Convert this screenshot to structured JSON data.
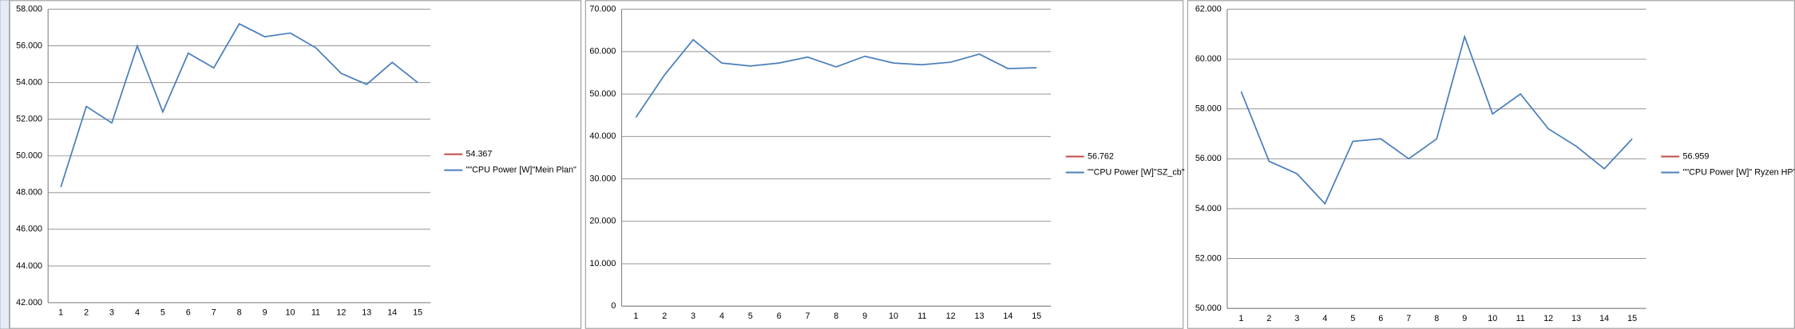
{
  "chart_data": [
    {
      "type": "line",
      "categories": [
        "1",
        "2",
        "3",
        "4",
        "5",
        "6",
        "7",
        "8",
        "9",
        "10",
        "11",
        "12",
        "13",
        "14",
        "15"
      ],
      "series": [
        {
          "name": "54.367",
          "color": "#be4b48",
          "values": [
            null,
            null,
            null,
            null,
            null,
            null,
            null,
            null,
            null,
            null,
            null,
            null,
            null,
            null,
            null
          ]
        },
        {
          "name": "\"\"CPU Power [W]\"Mein Plan\"",
          "color": "#4a7ebb",
          "values": [
            48.3,
            52.7,
            51.8,
            56.0,
            52.4,
            55.6,
            54.8,
            57.2,
            56.5,
            56.7,
            55.9,
            54.5,
            53.9,
            55.1,
            54.0
          ]
        }
      ],
      "ylim": [
        42,
        58
      ],
      "yticks": [
        {
          "value": 42,
          "label": "42.000"
        },
        {
          "value": 44,
          "label": "44.000"
        },
        {
          "value": 46,
          "label": "46.000"
        },
        {
          "value": 48,
          "label": "48.000"
        },
        {
          "value": 50,
          "label": "50.000"
        },
        {
          "value": 52,
          "label": "52.000"
        },
        {
          "value": 54,
          "label": "54.000"
        },
        {
          "value": 56,
          "label": "56.000"
        },
        {
          "value": 58,
          "label": "58.000"
        }
      ],
      "grid": true,
      "legend": "right"
    },
    {
      "type": "line",
      "categories": [
        "1",
        "2",
        "3",
        "4",
        "5",
        "6",
        "7",
        "8",
        "9",
        "10",
        "11",
        "12",
        "13",
        "14",
        "15"
      ],
      "series": [
        {
          "name": "56.762",
          "color": "#be4b48",
          "values": [
            null,
            null,
            null,
            null,
            null,
            null,
            null,
            null,
            null,
            null,
            null,
            null,
            null,
            null,
            null
          ]
        },
        {
          "name": "\"\"CPU Power [W]\"SZ_cb\"",
          "color": "#4a7ebb",
          "values": [
            44.5,
            54.5,
            62.8,
            57.3,
            56.6,
            57.3,
            58.7,
            56.4,
            58.9,
            57.3,
            56.9,
            57.5,
            59.4,
            56.0,
            56.2
          ]
        }
      ],
      "ylim": [
        0,
        70
      ],
      "yticks": [
        0,
        {
          "value": 10,
          "label": "10.000"
        },
        {
          "value": 20,
          "label": "20.000"
        },
        {
          "value": 30,
          "label": "30.000"
        },
        {
          "value": 40,
          "label": "40.000"
        },
        {
          "value": 50,
          "label": "50.000"
        },
        {
          "value": 60,
          "label": "60.000"
        },
        {
          "value": 70,
          "label": "70.000"
        }
      ],
      "grid": true,
      "legend": "right"
    },
    {
      "type": "line",
      "categories": [
        "1",
        "2",
        "3",
        "4",
        "5",
        "6",
        "7",
        "8",
        "9",
        "10",
        "11",
        "12",
        "13",
        "14",
        "15"
      ],
      "series": [
        {
          "name": "56.959",
          "color": "#be4b48",
          "values": [
            null,
            null,
            null,
            null,
            null,
            null,
            null,
            null,
            null,
            null,
            null,
            null,
            null,
            null,
            null
          ]
        },
        {
          "name": "\"\"CPU Power [W]\" Ryzen HP\"",
          "color": "#4a7ebb",
          "values": [
            58.7,
            55.9,
            55.4,
            54.2,
            56.7,
            56.8,
            56.0,
            56.8,
            60.9,
            57.8,
            58.6,
            57.2,
            56.5,
            55.6,
            56.8
          ]
        }
      ],
      "ylim": [
        50,
        62
      ],
      "yticks": [
        {
          "value": 50,
          "label": "50.000"
        },
        {
          "value": 52,
          "label": "52.000"
        },
        {
          "value": 54,
          "label": "54.000"
        },
        {
          "value": 56,
          "label": "56.000"
        },
        {
          "value": 58,
          "label": "58.000"
        },
        {
          "value": 60,
          "label": "60.000"
        },
        {
          "value": 62,
          "label": "62.000"
        }
      ],
      "grid": true,
      "legend": "right"
    }
  ]
}
